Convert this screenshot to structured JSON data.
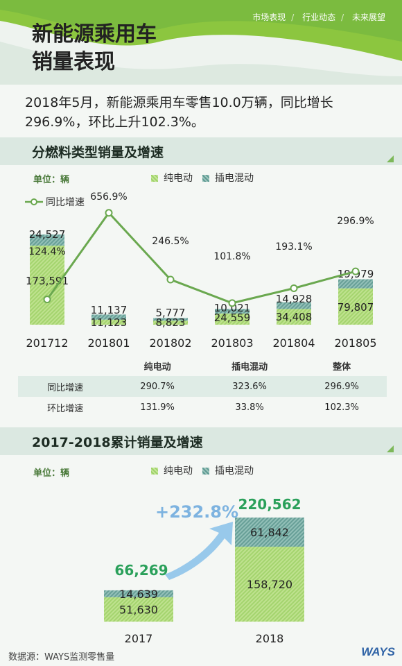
{
  "header": {
    "nav": [
      "市场表现",
      "行业动态",
      "未来展望"
    ],
    "title_line1": "新能源乘用车",
    "title_line2": "销量表现"
  },
  "summary": "2018年5月，新能源乘用车零售10.0万辆，同比增长296.9%，环比上升102.3%。",
  "section1": {
    "title": "分燃料类型销量及增速",
    "unit": "单位：辆",
    "legend_ev": "纯电动",
    "legend_phev": "插电混动",
    "legend_growth": "同比增速"
  },
  "growth_table": {
    "headers": [
      "",
      "纯电动",
      "插电混动",
      "整体"
    ],
    "rows": [
      {
        "label": "同比增速",
        "ev": "290.7%",
        "phev": "323.6%",
        "total": "296.9%"
      },
      {
        "label": "环比增速",
        "ev": "131.9%",
        "phev": "33.8%",
        "total": "102.3%"
      }
    ]
  },
  "section2": {
    "title": "2017-2018累计销量及增速",
    "unit": "单位：辆",
    "legend_ev": "纯电动",
    "legend_phev": "插电混动",
    "growth_label": "+232.8%"
  },
  "source": "数据源：WAYS监测零售量",
  "logo": "WAYS",
  "colors": {
    "ev": "#a8d873",
    "phev": "#6fa8a0",
    "line": "#6aa84f",
    "accent": "#2aa05a",
    "arrow": "#8ec3ea"
  },
  "chart_data": [
    {
      "type": "bar",
      "title": "分燃料类型销量及增速",
      "stacked": true,
      "categories": [
        "201712",
        "201801",
        "201802",
        "201803",
        "201804",
        "201805"
      ],
      "series": [
        {
          "name": "纯电动",
          "values": [
            173591,
            11123,
            8823,
            24559,
            34408,
            79807
          ],
          "labels": [
            "173,591",
            "11,123",
            "8,823",
            "24,559",
            "34,408",
            "79,807"
          ]
        },
        {
          "name": "插电混动",
          "values": [
            24527,
            11137,
            5777,
            10021,
            14928,
            19979
          ],
          "labels": [
            "24,527",
            "11,137",
            "5,777",
            "10,021",
            "14,928",
            "19,979"
          ]
        }
      ],
      "line_series": {
        "name": "同比增速",
        "values": [
          124.4,
          656.9,
          246.5,
          101.8,
          193.1,
          296.9
        ],
        "labels": [
          "124.4%",
          "656.9%",
          "246.5%",
          "101.8%",
          "193.1%",
          "296.9%"
        ]
      },
      "ylabel": "单位：辆"
    },
    {
      "type": "bar",
      "title": "2017-2018累计销量及增速",
      "stacked": true,
      "categories": [
        "2017",
        "2018"
      ],
      "series": [
        {
          "name": "纯电动",
          "values": [
            51630,
            158720
          ],
          "labels": [
            "51,630",
            "158,720"
          ]
        },
        {
          "name": "插电混动",
          "values": [
            14639,
            61842
          ],
          "labels": [
            "14,639",
            "61,842"
          ]
        }
      ],
      "totals": [
        66269,
        220562
      ],
      "total_labels": [
        "66,269",
        "220,562"
      ],
      "growth": "+232.8%",
      "ylabel": "单位：辆"
    }
  ]
}
